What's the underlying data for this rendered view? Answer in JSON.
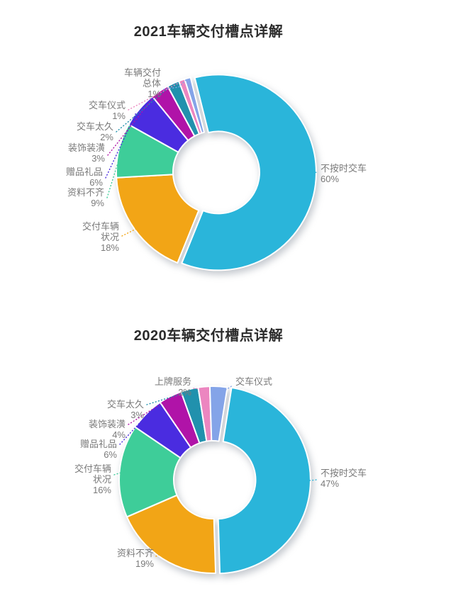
{
  "page": {
    "background": "#ffffff"
  },
  "text_colors": {
    "title": "#2b2b2b",
    "label": "#7a7a7a"
  },
  "chart_data": [
    {
      "type": "pie",
      "subtype": "donut",
      "title": "2021车辆交付槽点详解",
      "unit": "%",
      "legend_position": "none",
      "slices": [
        {
          "label": "不按时交车",
          "value": 60,
          "pct_text": "60%",
          "color": "#2ab5da"
        },
        {
          "label": "交付车辆状况",
          "value": 18,
          "pct_text": "18%",
          "color": "#f2a516"
        },
        {
          "label": "资料不齐",
          "value": 9,
          "pct_text": "9%",
          "color": "#3ecd99"
        },
        {
          "label": "赠品礼品",
          "value": 6,
          "pct_text": "6%",
          "color": "#4a2ce0"
        },
        {
          "label": "装饰装潢",
          "value": 3,
          "pct_text": "3%",
          "color": "#b013a8"
        },
        {
          "label": "交车太久",
          "value": 2,
          "pct_text": "2%",
          "color": "#2191ad"
        },
        {
          "label": "交车仪式",
          "value": 1,
          "pct_text": "1%",
          "color": "#ec86c0"
        },
        {
          "label": "车辆交付总体",
          "value": 1,
          "pct_text": "1%",
          "color": "#84a4e8"
        }
      ]
    },
    {
      "type": "pie",
      "subtype": "donut",
      "title": "2020车辆交付槽点详解",
      "unit": "%",
      "legend_position": "none",
      "slices": [
        {
          "label": "不按时交车",
          "value": 47,
          "pct_text": "47%",
          "color": "#2ab5da"
        },
        {
          "label": "资料不齐",
          "value": 19,
          "pct_text": "19%",
          "color": "#f2a516"
        },
        {
          "label": "交付车辆状况",
          "value": 16,
          "pct_text": "16%",
          "color": "#3ecd99"
        },
        {
          "label": "赠品礼品",
          "value": 6,
          "pct_text": "6%",
          "color": "#4a2ce0"
        },
        {
          "label": "装饰装潢",
          "value": 4,
          "pct_text": "4%",
          "color": "#b013a8"
        },
        {
          "label": "交车太久",
          "value": 3,
          "pct_text": "3%",
          "color": "#2191ad"
        },
        {
          "label": "上牌服务",
          "value": 2,
          "pct_text": "2%",
          "color": "#ec86c0"
        },
        {
          "label": "交车仪式",
          "value": 3,
          "pct_text": "",
          "color": "#84a4e8"
        }
      ]
    }
  ]
}
